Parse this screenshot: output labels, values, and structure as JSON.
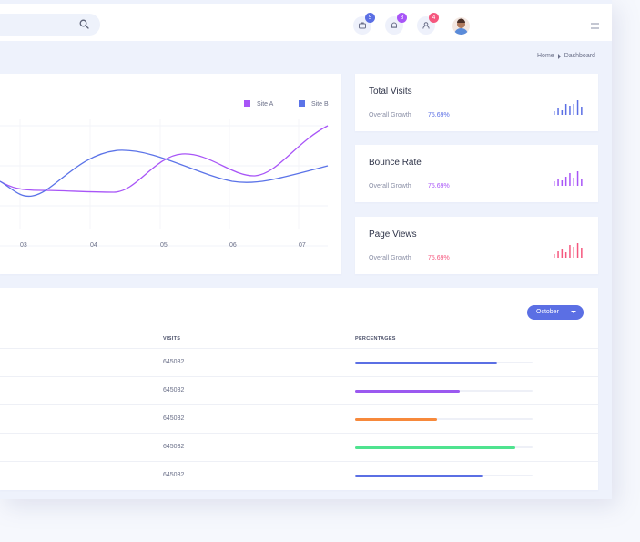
{
  "header": {
    "badges": [
      "5",
      "3",
      "4"
    ]
  },
  "breadcrumb": {
    "home": "Home",
    "current": "Dashboard"
  },
  "chart_data": {
    "type": "line",
    "x": [
      "03",
      "04",
      "05",
      "06",
      "07"
    ],
    "series": [
      {
        "name": "Site A",
        "color": "#a855f7"
      },
      {
        "name": "Site B",
        "color": "#5b73e8"
      }
    ],
    "legend_position": "top-right"
  },
  "stats": [
    {
      "title": "Total Visits",
      "label": "Overall Growth",
      "value": "75.69%",
      "color": "#5b6fe4"
    },
    {
      "title": "Bounce Rate",
      "label": "Overall Growth",
      "value": "75.69%",
      "color": "#a855f7"
    },
    {
      "title": "Page Views",
      "label": "Overall Growth",
      "value": "75.69%",
      "color": "#f5577e"
    }
  ],
  "table": {
    "month": "October",
    "headers": {
      "visits": "VISITS",
      "percentages": "PERCENTAGES"
    },
    "rows": [
      {
        "visits": "645032",
        "percent": 80,
        "color": "#5b6fe4"
      },
      {
        "visits": "645032",
        "percent": 59,
        "color": "#9b59f0"
      },
      {
        "visits": "645032",
        "percent": 46,
        "color": "#f7893b"
      },
      {
        "visits": "645032",
        "percent": 90,
        "color": "#4fe38f"
      },
      {
        "visits": "645032",
        "percent": 72,
        "color": "#5b6fe4"
      }
    ]
  }
}
